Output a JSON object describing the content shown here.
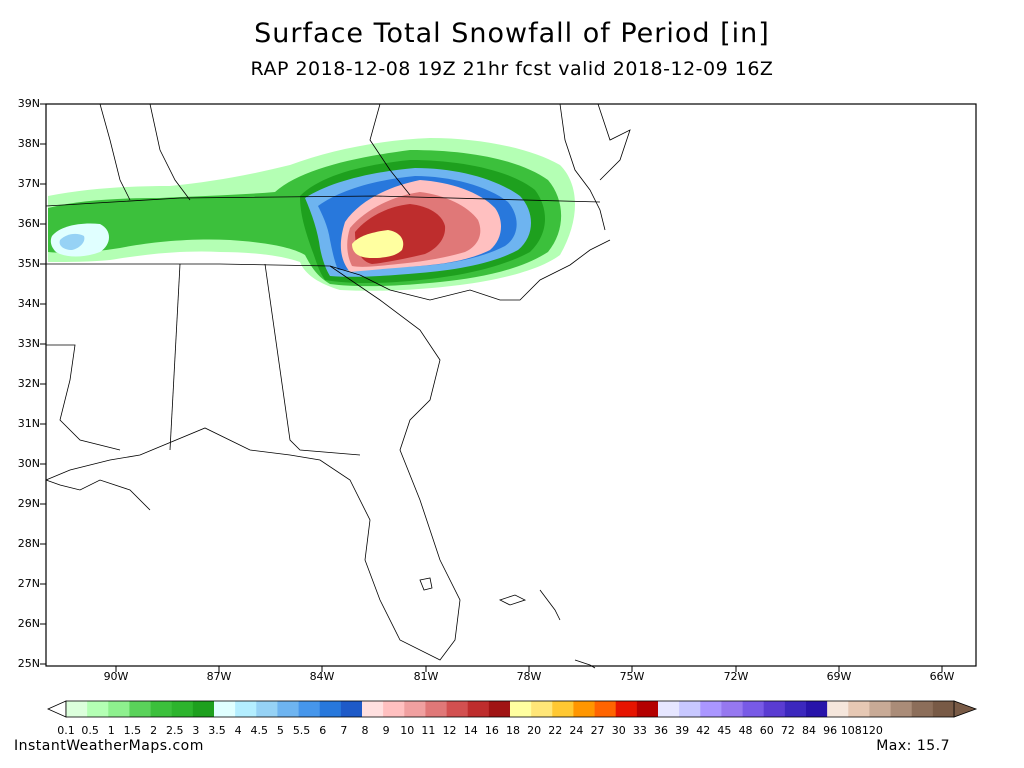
{
  "title": "Surface Total Snowfall of Period [in]",
  "subtitle": "RAP 2018-12-08 19Z 21hr fcst valid 2018-12-09 16Z",
  "lat_labels": [
    "39N",
    "38N",
    "37N",
    "36N",
    "35N",
    "34N",
    "33N",
    "32N",
    "31N",
    "30N",
    "29N",
    "28N",
    "27N",
    "26N",
    "25N"
  ],
  "lon_labels": [
    "90W",
    "87W",
    "84W",
    "81W",
    "78W",
    "75W",
    "72W",
    "69W",
    "66W"
  ],
  "colorbar": {
    "low_label": "0.1",
    "labels": [
      "0.5",
      "1",
      "1.5",
      "2",
      "2.5",
      "3",
      "3.5",
      "4",
      "4.5",
      "5",
      "5.5",
      "6",
      "7",
      "8",
      "9",
      "10",
      "11",
      "12",
      "14",
      "16",
      "18",
      "20",
      "22",
      "24",
      "27",
      "30",
      "33",
      "36",
      "39",
      "42",
      "45",
      "48",
      "60",
      "72",
      "84",
      "96",
      "108",
      "120"
    ],
    "colors": [
      "#dcffdc",
      "#b4ffb4",
      "#8ef08e",
      "#5ad25a",
      "#3cc03c",
      "#2db42d",
      "#1ea01e",
      "#e0ffff",
      "#b4eeff",
      "#96d2f5",
      "#6eb4f0",
      "#4696eb",
      "#2878dc",
      "#1e5ac8",
      "#ffe0e0",
      "#ffc0c0",
      "#f0a0a0",
      "#e07878",
      "#d25050",
      "#be2d2d",
      "#a01414",
      "#ffffa0",
      "#ffe678",
      "#ffc832",
      "#ff9600",
      "#ff6400",
      "#e61400",
      "#b40000",
      "#e6e6ff",
      "#c8c8ff",
      "#aa96ff",
      "#9678f0",
      "#785ae6",
      "#5a3cd2",
      "#3c28be",
      "#2814aa",
      "#f5e6dc",
      "#e6c8b4",
      "#c8aa96",
      "#aa8c78",
      "#8c6e5a",
      "#785a46"
    ]
  },
  "credit": "InstantWeatherMaps.com",
  "max_label": "Max: 15.7",
  "chart_data": {
    "type": "heatmap",
    "title": "Surface Total Snowfall of Period [in]",
    "variable": "snowfall",
    "units": "in",
    "lat_range": [
      25,
      39
    ],
    "lon_range": [
      -92,
      -65
    ],
    "max_value": 15.7,
    "snow_regions": [
      {
        "area": "northern Arkansas / western Tennessee",
        "approx_max_in": 4
      },
      {
        "area": "southwest Virginia / western North Carolina",
        "approx_max_in": 15.7
      }
    ]
  }
}
